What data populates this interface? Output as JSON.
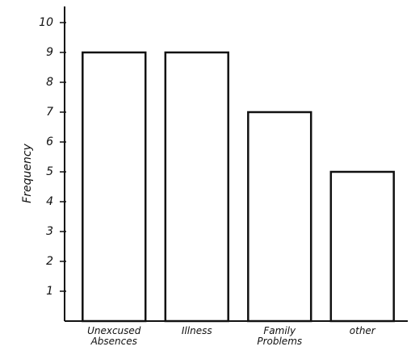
{
  "chart_data": {
    "type": "bar",
    "y_label": "Frequency",
    "categories": [
      "Unexcused Absences",
      "Illness",
      "Family Problems",
      "other"
    ],
    "values": [
      9,
      9,
      7,
      5
    ],
    "color": "#ffffff",
    "ylim": [
      0,
      10
    ],
    "yticks": [
      1,
      2,
      3,
      4,
      5,
      6,
      7,
      8,
      9,
      10
    ],
    "grid": false
  }
}
